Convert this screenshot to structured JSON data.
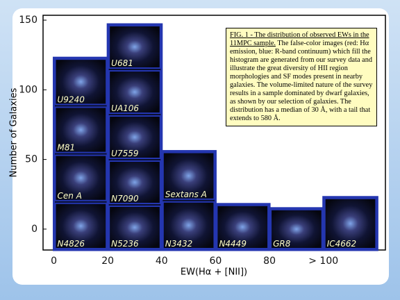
{
  "chart_data": {
    "type": "histogram",
    "ylabel": "Number of Galaxies",
    "xlabel": "EW(Hα + [NII])",
    "bins": [
      0,
      20,
      40,
      60,
      80,
      100,
      120
    ],
    "values": [
      123,
      147,
      56,
      18,
      15,
      23
    ],
    "cells": [
      [
        "N4826",
        "Cen A",
        "M81",
        "U9240"
      ],
      [
        "N5236",
        "N7090",
        "U7559",
        "UA106",
        "U681"
      ],
      [
        "N3432",
        "Sextans A"
      ],
      [
        "N4449"
      ],
      [
        "GR8"
      ],
      [
        "IC4662"
      ]
    ],
    "color": "#0a0f2e",
    "edge_color": "#2436b0",
    "xlim": [
      -4,
      123
    ],
    "ylim": [
      -15,
      153.5
    ],
    "xticks": [
      0,
      20,
      40,
      60,
      80,
      {
        "value": 100,
        "label": "> 100"
      }
    ],
    "yticks": [
      0,
      50,
      100,
      150
    ],
    "caption_heading": "FIG. 1 - The distribution of observed EWs in the 11MPC sample.",
    "caption_text": "The false-color images (red: Hα emission, blue: R-band continuum) which fill the histogram are generated from our survey data and illustrate the great diversity of HII region morphologies and SF modes present in nearby galaxies. The volume-limited nature of the survey results in a sample dominated by dwarf galaxies, as shown by our selection of galaxies. The distribution has a median of 30 Å, with a tail that extends to 580 Å."
  }
}
